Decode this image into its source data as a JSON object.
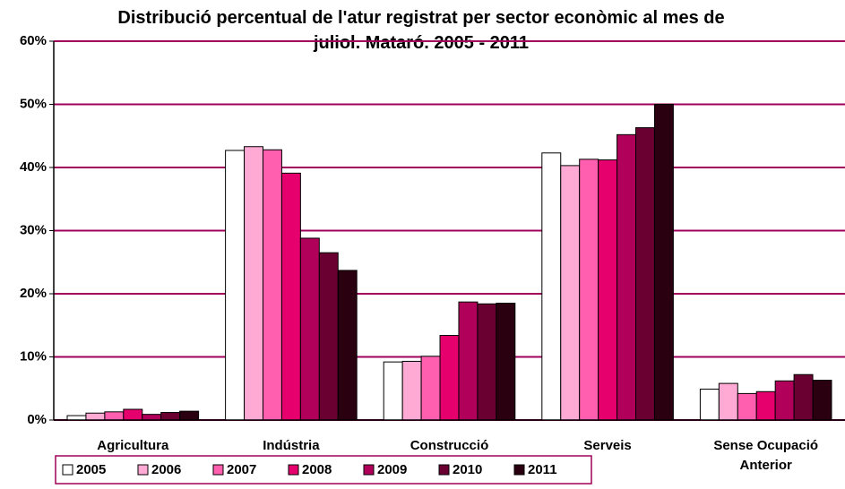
{
  "chart_data": {
    "type": "bar",
    "title": "Distribució percentual de l'atur registrat per sector econòmic al mes de juliol. Mataró. 2005 - 2011",
    "categories": [
      "Agricultura",
      "Indústria",
      "Construcció",
      "Serveis",
      "Sense Ocupació Anterior"
    ],
    "series": [
      {
        "name": "2005",
        "color": "#ffffff",
        "values": [
          0.7,
          42.7,
          9.2,
          42.3,
          4.9
        ]
      },
      {
        "name": "2006",
        "color": "#ffaad4",
        "values": [
          1.1,
          43.3,
          9.3,
          40.3,
          5.8
        ]
      },
      {
        "name": "2007",
        "color": "#ff5fae",
        "values": [
          1.3,
          42.8,
          10.1,
          41.3,
          4.2
        ]
      },
      {
        "name": "2008",
        "color": "#e6006e",
        "values": [
          1.7,
          39.1,
          13.4,
          41.2,
          4.5
        ]
      },
      {
        "name": "2009",
        "color": "#b0005a",
        "values": [
          0.9,
          28.8,
          18.7,
          45.2,
          6.2
        ]
      },
      {
        "name": "2010",
        "color": "#6a0032",
        "values": [
          1.2,
          26.5,
          18.4,
          46.3,
          7.2
        ]
      },
      {
        "name": "2011",
        "color": "#2a0010",
        "values": [
          1.4,
          23.7,
          18.5,
          50.0,
          6.3
        ]
      }
    ],
    "ylim": [
      0,
      60
    ],
    "yticks": [
      {
        "value": 0,
        "label": "0%"
      },
      {
        "value": 10,
        "label": "10%"
      },
      {
        "value": 20,
        "label": "20%"
      },
      {
        "value": 30,
        "label": "30%"
      },
      {
        "value": 40,
        "label": "40%"
      },
      {
        "value": 50,
        "label": "50%"
      },
      {
        "value": 60,
        "label": "60%"
      }
    ],
    "grid": true,
    "grid_color": "#a0005a",
    "legend": "bottom"
  }
}
